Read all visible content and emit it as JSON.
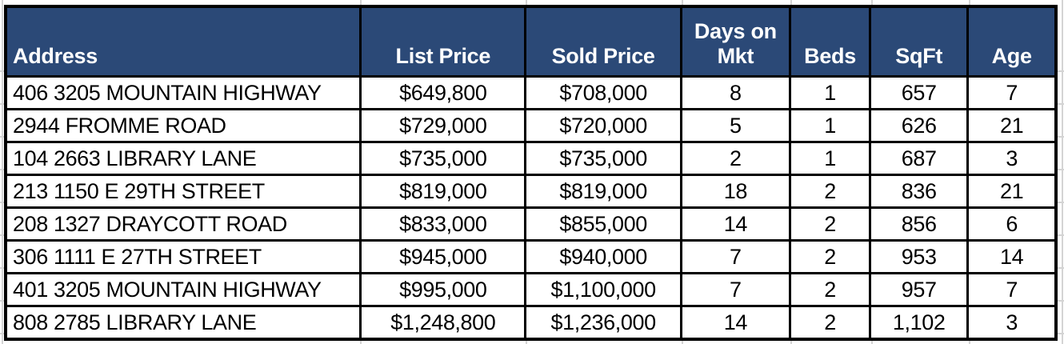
{
  "chart_data": {
    "type": "table",
    "columns": [
      "Address",
      "List Price",
      "Sold Price",
      "Days on Mkt",
      "Beds",
      "SqFt",
      "Age"
    ],
    "rows": [
      [
        "406 3205 MOUNTAIN HIGHWAY",
        "$649,800",
        "$708,000",
        "8",
        "1",
        "657",
        "7"
      ],
      [
        "2944 FROMME ROAD",
        "$729,000",
        "$720,000",
        "5",
        "1",
        "626",
        "21"
      ],
      [
        "104 2663 LIBRARY LANE",
        "$735,000",
        "$735,000",
        "2",
        "1",
        "687",
        "3"
      ],
      [
        "213 1150 E 29TH STREET",
        "$819,000",
        "$819,000",
        "18",
        "2",
        "836",
        "21"
      ],
      [
        "208 1327 DRAYCOTT ROAD",
        "$833,000",
        "$855,000",
        "14",
        "2",
        "856",
        "6"
      ],
      [
        "306 1111 E 27TH STREET",
        "$945,000",
        "$940,000",
        "7",
        "2",
        "953",
        "14"
      ],
      [
        "401 3205 MOUNTAIN HIGHWAY",
        "$995,000",
        "$1,100,000",
        "7",
        "2",
        "957",
        "7"
      ],
      [
        "808 2785 LIBRARY LANE",
        "$1,248,800",
        "$1,236,000",
        "14",
        "2",
        "1,102",
        "3"
      ]
    ]
  },
  "colors": {
    "header_bg": "#2B4977",
    "header_text": "#FFFFFF",
    "cell_bg": "#FFFFFF",
    "cell_text": "#000000",
    "table_border": "#000000",
    "gridline": "#D4D4D4",
    "canvas_bg": "#FFFFFF"
  }
}
